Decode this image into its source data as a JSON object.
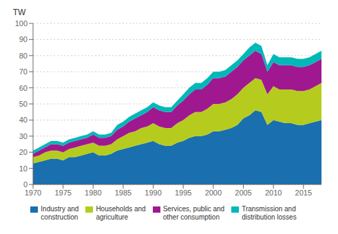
{
  "chart_data": {
    "type": "area",
    "stacked": true,
    "ylabel": "TW",
    "x": [
      1970,
      1971,
      1972,
      1973,
      1974,
      1975,
      1976,
      1977,
      1978,
      1979,
      1980,
      1981,
      1982,
      1983,
      1984,
      1985,
      1986,
      1987,
      1988,
      1989,
      1990,
      1991,
      1992,
      1993,
      1994,
      1995,
      1996,
      1997,
      1998,
      1999,
      2000,
      2001,
      2002,
      2003,
      2004,
      2005,
      2006,
      2007,
      2008,
      2009,
      2010,
      2011,
      2012,
      2013,
      2014,
      2015,
      2016,
      2017,
      2018
    ],
    "series": [
      {
        "name": "Industry and\nconstruction",
        "color": "#1a6faf",
        "values": [
          13,
          14,
          15,
          16,
          16,
          15,
          17,
          17,
          18,
          19,
          20,
          18,
          18,
          19,
          21,
          22,
          23,
          24,
          25,
          26,
          27,
          25,
          24,
          24,
          26,
          27,
          29,
          30,
          30,
          31,
          33,
          33,
          34,
          35,
          37,
          41,
          43,
          46,
          45,
          37,
          40,
          39,
          38,
          38,
          37,
          37,
          38,
          39,
          40
        ]
      },
      {
        "name": "Households and\nagriculture",
        "color": "#b5cc1e",
        "values": [
          4,
          4,
          5,
          5,
          5,
          5,
          5,
          6,
          6,
          6,
          6,
          6,
          6,
          6,
          7,
          8,
          9,
          9,
          10,
          10,
          11,
          11,
          11,
          11,
          12,
          13,
          14,
          15,
          15,
          16,
          17,
          17,
          17,
          18,
          19,
          19,
          20,
          20,
          20,
          19,
          21,
          20,
          21,
          21,
          21,
          21,
          21,
          22,
          23
        ]
      },
      {
        "name": "Services, public and\nother consumption",
        "color": "#a01890",
        "values": [
          2,
          3,
          3,
          4,
          4,
          4,
          4,
          4,
          4,
          4,
          5,
          5,
          5,
          5,
          6,
          6,
          7,
          8,
          8,
          9,
          10,
          10,
          10,
          10,
          11,
          12,
          13,
          14,
          14,
          15,
          16,
          16,
          16,
          17,
          17,
          17,
          17,
          17,
          16,
          14,
          15,
          15,
          15,
          15,
          15,
          15,
          15,
          15,
          15
        ]
      },
      {
        "name": "Transmission and\ndistribution losses",
        "color": "#00b8b8",
        "values": [
          2,
          2,
          2,
          2,
          2,
          2,
          2,
          2,
          2,
          2,
          2,
          2,
          2,
          2,
          3,
          3,
          3,
          3,
          3,
          3,
          3,
          3,
          3,
          3,
          3,
          4,
          4,
          4,
          4,
          4,
          4,
          4,
          4,
          4,
          4,
          4,
          5,
          5,
          5,
          4,
          5,
          5,
          5,
          5,
          5,
          5,
          5,
          5,
          5
        ]
      }
    ],
    "xlim": [
      1970,
      2018
    ],
    "xticks": [
      1970,
      1975,
      1980,
      1985,
      1990,
      1995,
      2000,
      2005,
      2010,
      2015
    ],
    "ylim": [
      0,
      100
    ],
    "yticks": [
      0,
      10,
      20,
      30,
      40,
      50,
      60,
      70,
      80,
      90,
      100
    ],
    "grid": true,
    "legend": "bottom"
  }
}
